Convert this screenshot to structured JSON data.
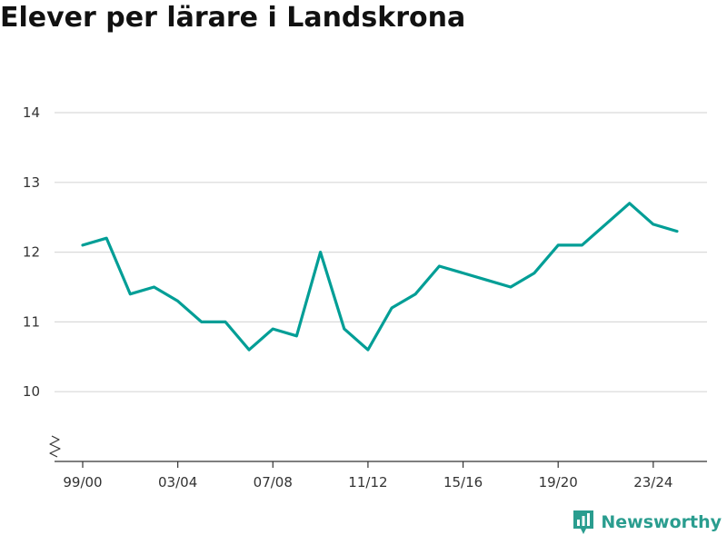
{
  "header": {
    "title": "Elever per lärare i Landskrona"
  },
  "brand": {
    "name": "Newsworthy",
    "icon": "newsworthy-logo-icon"
  },
  "colors": {
    "line": "#009e96",
    "grid": "#d9d9d9",
    "axis": "#333333",
    "brand": "#2a9d8f"
  },
  "chart_data": {
    "type": "line",
    "title": "Elever per lärare i Landskrona",
    "xlabel": "",
    "ylabel": "",
    "x": [
      "99/00",
      "00/01",
      "01/02",
      "02/03",
      "03/04",
      "04/05",
      "05/06",
      "06/07",
      "07/08",
      "08/09",
      "09/10",
      "10/11",
      "11/12",
      "12/13",
      "13/14",
      "14/15",
      "15/16",
      "16/17",
      "17/18",
      "18/19",
      "19/20",
      "20/21",
      "21/22",
      "22/23",
      "23/24",
      "24/25"
    ],
    "series": [
      {
        "values": [
          12.1,
          12.2,
          11.4,
          11.5,
          11.3,
          11.0,
          11.0,
          10.6,
          10.9,
          10.8,
          12.0,
          10.9,
          10.6,
          11.2,
          11.4,
          11.8,
          11.7,
          11.6,
          11.5,
          11.7,
          12.1,
          12.1,
          12.4,
          12.7,
          12.4,
          12.3
        ]
      }
    ],
    "x_tick_labels": [
      "99/00",
      "03/04",
      "07/08",
      "11/12",
      "15/16",
      "19/20",
      "23/24"
    ],
    "y_ticks": [
      10,
      11,
      12,
      13,
      14
    ],
    "ylim": [
      9,
      14
    ],
    "y_axis_break": true,
    "grid": true,
    "legend": "none"
  }
}
